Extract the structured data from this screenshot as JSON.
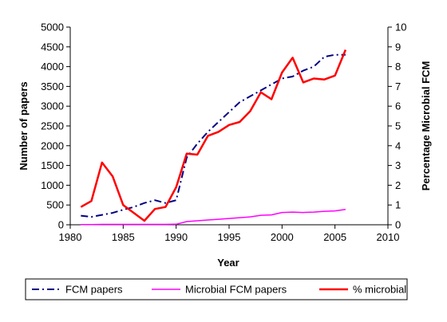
{
  "chart_data": {
    "type": "line",
    "xlabel": "Year",
    "ylabel_left": "Number of papers",
    "ylabel_right": "Percentage Microbial FCM",
    "xlim": [
      1980,
      2010
    ],
    "xticks": [
      1980,
      1985,
      1990,
      1995,
      2000,
      2005,
      2010
    ],
    "ylim_left": [
      0,
      5000
    ],
    "yticks_left": [
      0,
      500,
      1000,
      1500,
      2000,
      2500,
      3000,
      3500,
      4000,
      4500,
      5000
    ],
    "ylim_right": [
      0,
      10
    ],
    "yticks_right": [
      0,
      1,
      2,
      3,
      4,
      5,
      6,
      7,
      8,
      9,
      10
    ],
    "grid": false,
    "legend_position": "bottom",
    "series": [
      {
        "name": "FCM papers",
        "axis": "left",
        "color": "#000080",
        "style": "dash-dot",
        "x": [
          1981,
          1982,
          1983,
          1984,
          1985,
          1986,
          1987,
          1988,
          1989,
          1990,
          1991,
          1992,
          1993,
          1994,
          1995,
          1996,
          1997,
          1998,
          1999,
          2000,
          2001,
          2002,
          2003,
          2004,
          2005,
          2006
        ],
        "y": [
          230,
          200,
          250,
          300,
          380,
          450,
          550,
          620,
          550,
          620,
          1700,
          2050,
          2350,
          2600,
          2850,
          3100,
          3250,
          3400,
          3550,
          3700,
          3750,
          3900,
          4000,
          4250,
          4300,
          4300
        ]
      },
      {
        "name": "Microbial FCM papers",
        "axis": "left",
        "color": "#ff00ff",
        "style": "solid",
        "x": [
          1981,
          1982,
          1983,
          1984,
          1985,
          1986,
          1987,
          1988,
          1989,
          1990,
          1991,
          1992,
          1993,
          1994,
          1995,
          1996,
          1997,
          1998,
          1999,
          2000,
          2001,
          2002,
          2003,
          2004,
          2005,
          2006
        ],
        "y": [
          5,
          5,
          10,
          10,
          10,
          10,
          10,
          10,
          10,
          15,
          80,
          100,
          120,
          140,
          160,
          180,
          200,
          240,
          250,
          310,
          320,
          310,
          320,
          340,
          350,
          390
        ]
      },
      {
        "name": "% microbial",
        "axis": "right",
        "color": "#ff0000",
        "style": "solid",
        "x": [
          1981,
          1982,
          1983,
          1984,
          1985,
          1986,
          1987,
          1988,
          1989,
          1990,
          1991,
          1992,
          1993,
          1994,
          1995,
          1996,
          1997,
          1998,
          1999,
          2000,
          2001,
          2002,
          2003,
          2004,
          2005,
          2006
        ],
        "y": [
          0.9,
          1.2,
          3.15,
          2.45,
          1.0,
          0.6,
          0.2,
          0.8,
          0.9,
          1.9,
          3.6,
          3.55,
          4.5,
          4.7,
          5.05,
          5.2,
          5.75,
          6.7,
          6.35,
          7.7,
          8.45,
          7.2,
          7.4,
          7.35,
          7.55,
          8.85
        ]
      }
    ]
  }
}
